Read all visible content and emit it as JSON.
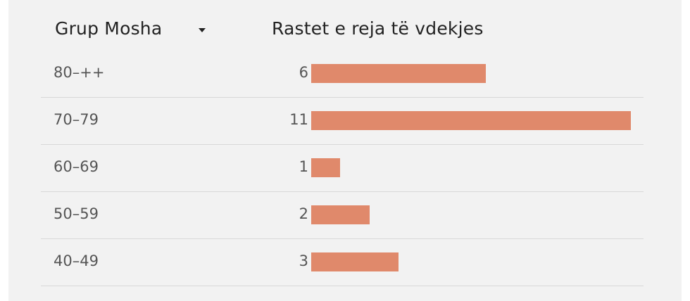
{
  "header": {
    "age_group": "Grup Mosha",
    "deaths": "Rastet e reja të vdekjes"
  },
  "colors": {
    "bar": "#e0896b",
    "panel": "#f2f2f2"
  },
  "icons": {
    "sort": "sort-caret-down-icon"
  },
  "chart_data": {
    "type": "bar",
    "orientation": "horizontal",
    "title": "",
    "categories": [
      "80–++",
      "70–79",
      "60–69",
      "50–59",
      "40–49"
    ],
    "values": [
      6,
      11,
      1,
      2,
      3
    ],
    "xlabel": "Rastet e reja të vdekjes",
    "ylabel": "Grup Mosha",
    "xlim": [
      0,
      11
    ],
    "grid": false
  }
}
